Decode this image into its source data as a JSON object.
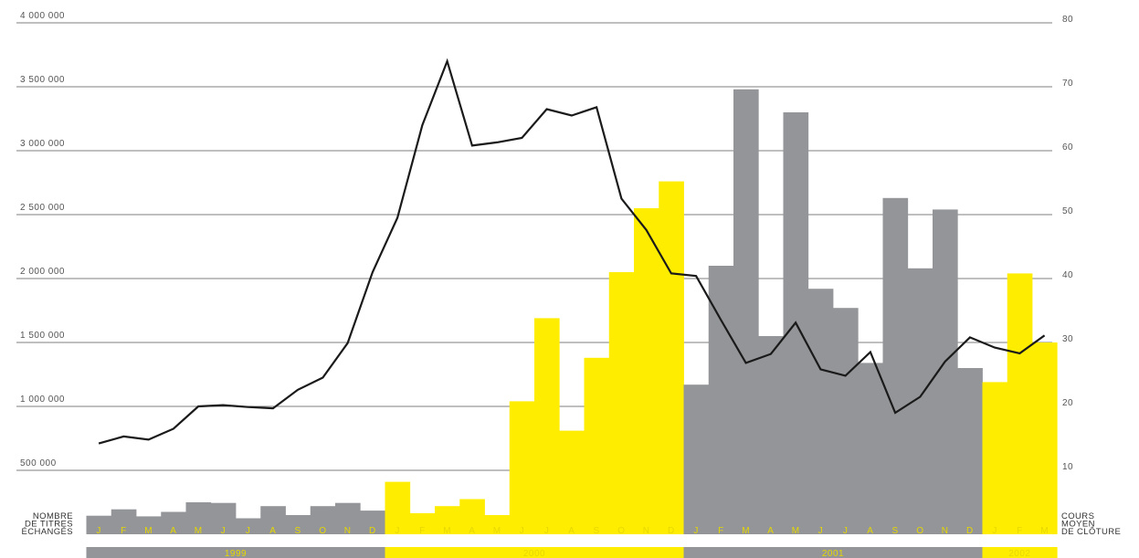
{
  "chart_data": {
    "type": "bar",
    "left_axis": {
      "min": 0,
      "max": 4000000,
      "ticks": [
        500000,
        1000000,
        1500000,
        2000000,
        2500000,
        3000000,
        3500000,
        4000000
      ],
      "tick_labels": [
        "500 000",
        "1 000 000",
        "1 500 000",
        "2 000 000",
        "2 500 000",
        "3 000 000",
        "3 500 000",
        "4 000 000"
      ],
      "title_lines": [
        "NOMBRE",
        "DE TITRES",
        "ÉCHANGÉS"
      ]
    },
    "right_axis": {
      "min": 0,
      "max": 80,
      "ticks": [
        10,
        20,
        30,
        40,
        50,
        60,
        70,
        80
      ],
      "tick_labels": [
        "10",
        "20",
        "30",
        "40",
        "50",
        "60",
        "70",
        "80"
      ],
      "title_lines": [
        "COURS",
        "MOYEN",
        "DE CLÔTURE"
      ]
    },
    "grid": true,
    "categories": [
      "J",
      "F",
      "M",
      "A",
      "M",
      "J",
      "J",
      "A",
      "S",
      "O",
      "N",
      "D",
      "J",
      "F",
      "M",
      "A",
      "M",
      "J",
      "J",
      "A",
      "S",
      "O",
      "N",
      "D",
      "J",
      "F",
      "M",
      "A",
      "M",
      "J",
      "J",
      "A",
      "S",
      "O",
      "N",
      "D",
      "J",
      "F",
      "M"
    ],
    "years": [
      {
        "label": "1999",
        "months": 12
      },
      {
        "label": "2000",
        "months": 12
      },
      {
        "label": "2001",
        "months": 12
      },
      {
        "label": "2002",
        "months": 3
      }
    ],
    "series": [
      {
        "type": "bar",
        "axis": "left",
        "values": [
          145000,
          195000,
          140000,
          175000,
          250000,
          245000,
          125000,
          220000,
          150000,
          220000,
          245000,
          185000,
          410000,
          165000,
          220000,
          275000,
          150000,
          1040000,
          1690000,
          810000,
          1380000,
          2050000,
          2550000,
          2760000,
          1170000,
          2100000,
          3480000,
          1550000,
          3300000,
          1920000,
          1770000,
          1340000,
          2630000,
          2080000,
          2540000,
          1300000,
          1190000,
          2040000,
          1500000
        ]
      },
      {
        "type": "line",
        "axis": "right",
        "values": [
          14.2,
          15.3,
          14.8,
          16.5,
          20.0,
          20.2,
          19.9,
          19.7,
          22.6,
          24.5,
          29.9,
          41.0,
          49.5,
          64.0,
          74.0,
          60.8,
          61.3,
          62.0,
          66.5,
          65.5,
          66.8,
          52.5,
          47.6,
          40.8,
          40.4,
          33.5,
          26.8,
          28.2,
          33.1,
          25.8,
          24.8,
          28.5,
          19.0,
          21.5,
          27.0,
          30.8,
          29.2,
          28.3,
          31.1
        ]
      }
    ]
  },
  "colors": {
    "background": "#ffffff",
    "gray": "#939598",
    "yellow": "#ffed00",
    "line": "#1a1a1a",
    "grid": "#555555",
    "month_text": "#e6d800"
  }
}
